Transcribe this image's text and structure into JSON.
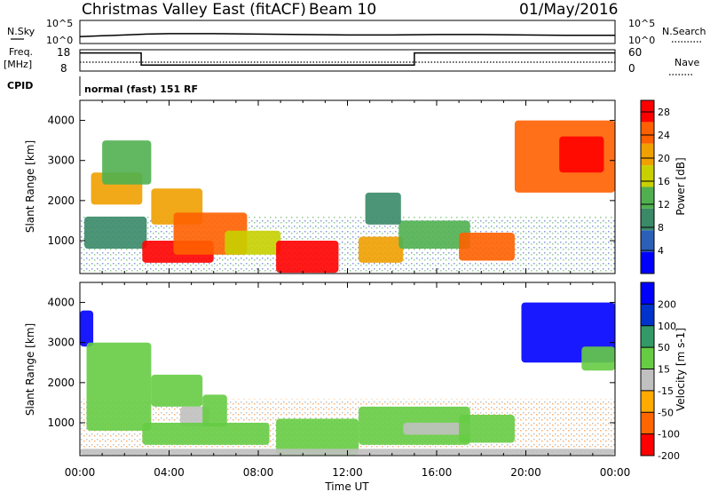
{
  "header": {
    "title": "Christmas Valley East (fitACF)",
    "beam": "Beam 10",
    "date": "01/May/2016"
  },
  "panels": {
    "nsky": {
      "label": "N.Sky",
      "ticks": [
        "10^5",
        "10^0"
      ],
      "right_label": "N.Search",
      "right_ticks": [
        "10^5",
        "10^0"
      ]
    },
    "freq": {
      "label_line1": "Freq.",
      "label_line2": "[MHz]",
      "ticks": [
        "18",
        "8"
      ],
      "right_label": "Nave",
      "right_ticks": [
        "60",
        "0"
      ]
    },
    "cpid": {
      "label": "CPID",
      "value": "normal (fast) 151 RF"
    }
  },
  "chart_data": [
    {
      "type": "line",
      "name": "nsky",
      "x_unit": "hours UT",
      "x": [
        0,
        1,
        2,
        3,
        4,
        6,
        8,
        10,
        12,
        14,
        16,
        18,
        20,
        22,
        24
      ],
      "values": [
        1.4,
        1.6,
        1.8,
        2.0,
        2.1,
        2.1,
        2.0,
        1.9,
        1.8,
        1.8,
        1.9,
        1.9,
        1.8,
        1.7,
        1.7
      ],
      "xlim": [
        0,
        24
      ]
    },
    {
      "type": "line",
      "name": "freq",
      "x_unit": "hours UT",
      "steps": [
        {
          "x0": 0,
          "x1": 2.75,
          "value": 16.5
        },
        {
          "x0": 2.75,
          "x1": 15.0,
          "value": 10.8
        },
        {
          "x0": 15.0,
          "x1": 24,
          "value": 16.5
        }
      ],
      "nave": 25,
      "ylim": [
        8,
        18
      ]
    },
    {
      "type": "heatmap",
      "name": "power",
      "ylabel": "Slant Range [km]",
      "ylim": [
        180,
        4500
      ],
      "xlim": [
        0,
        24
      ],
      "yticks": [
        "4000",
        "3000",
        "2000",
        "1000"
      ],
      "colorbar": {
        "label": "Power [dB]",
        "ticks": [
          "28",
          "24",
          "20",
          "16",
          "12",
          "8",
          "4"
        ],
        "range": [
          0,
          30
        ]
      },
      "regions": [
        {
          "t0": 0.2,
          "t1": 3.0,
          "r0": 800,
          "r1": 1600,
          "v": 10
        },
        {
          "t0": 0.5,
          "t1": 2.8,
          "r0": 1900,
          "r1": 2700,
          "v": 20
        },
        {
          "t0": 1.0,
          "t1": 3.2,
          "r0": 2400,
          "r1": 3500,
          "v": 13
        },
        {
          "t0": 3.2,
          "t1": 5.5,
          "r0": 1400,
          "r1": 2300,
          "v": 20
        },
        {
          "t0": 2.8,
          "t1": 6.0,
          "r0": 450,
          "r1": 1000,
          "v": 29
        },
        {
          "t0": 4.2,
          "t1": 7.5,
          "r0": 650,
          "r1": 1700,
          "v": 26
        },
        {
          "t0": 6.5,
          "t1": 9.0,
          "r0": 650,
          "r1": 1250,
          "v": 18
        },
        {
          "t0": 8.8,
          "t1": 11.6,
          "r0": 200,
          "r1": 1000,
          "v": 27
        },
        {
          "t0": 12.5,
          "t1": 14.5,
          "r0": 450,
          "r1": 1100,
          "v": 21
        },
        {
          "t0": 14.3,
          "t1": 17.5,
          "r0": 800,
          "r1": 1500,
          "v": 12
        },
        {
          "t0": 17.0,
          "t1": 19.5,
          "r0": 500,
          "r1": 1200,
          "v": 26
        },
        {
          "t0": 12.8,
          "t1": 14.4,
          "r0": 1400,
          "r1": 2200,
          "v": 9
        },
        {
          "t0": 19.5,
          "t1": 24,
          "r0": 2200,
          "r1": 4000,
          "v": 23
        },
        {
          "t0": 21.5,
          "t1": 23.5,
          "r0": 2700,
          "r1": 3600,
          "v": 28
        }
      ]
    },
    {
      "type": "heatmap",
      "name": "velocity",
      "ylabel": "Slant Range [km]",
      "xlabel": "Time UT",
      "ylim": [
        180,
        4500
      ],
      "xlim": [
        0,
        24
      ],
      "xticks": [
        "00:00",
        "04:00",
        "08:00",
        "12:00",
        "16:00",
        "20:00",
        "00:00"
      ],
      "yticks": [
        "4000",
        "3000",
        "2000",
        "1000"
      ],
      "colorbar": {
        "label": "Velocity [m s-1]",
        "ticks": [
          "200",
          "100",
          "50",
          "15",
          "-15",
          "-50",
          "-100",
          "-200"
        ],
        "range": [
          -250,
          250
        ]
      },
      "regions": [
        {
          "t0": 0.0,
          "t1": 0.6,
          "r0": 2900,
          "r1": 3800,
          "v": 220
        },
        {
          "t0": 0.3,
          "t1": 3.2,
          "r0": 800,
          "r1": 3000,
          "v": 0
        },
        {
          "t0": 3.2,
          "t1": 5.5,
          "r0": 1400,
          "r1": 2200,
          "v": 0
        },
        {
          "t0": 4.5,
          "t1": 5.8,
          "r0": 900,
          "r1": 1400,
          "v": -40
        },
        {
          "t0": 5.5,
          "t1": 6.6,
          "r0": 900,
          "r1": 1700,
          "v": 40
        },
        {
          "t0": 2.8,
          "t1": 8.5,
          "r0": 450,
          "r1": 1000,
          "v": 0
        },
        {
          "t0": 8.8,
          "t1": 12.5,
          "r0": 200,
          "r1": 1100,
          "v": 0
        },
        {
          "t0": 12.5,
          "t1": 17.5,
          "r0": 450,
          "r1": 1400,
          "v": 0
        },
        {
          "t0": 14.5,
          "t1": 17.5,
          "r0": 700,
          "r1": 1000,
          "v": -30
        },
        {
          "t0": 17.0,
          "t1": 19.5,
          "r0": 500,
          "r1": 1200,
          "v": 0
        },
        {
          "t0": 0.0,
          "t1": 24,
          "r0": 200,
          "r1": 350,
          "v": -30
        },
        {
          "t0": 19.8,
          "t1": 24,
          "r0": 2500,
          "r1": 4000,
          "v": 220
        },
        {
          "t0": 22.5,
          "t1": 24,
          "r0": 2300,
          "r1": 2900,
          "v": 0
        }
      ]
    }
  ],
  "colors": {
    "power_scale": [
      "#0000ff",
      "#2b5fb8",
      "#3a8a68",
      "#50b050",
      "#c8d000",
      "#f0a000",
      "#ff6000",
      "#ff0000"
    ],
    "velocity_scale": [
      "#ff0000",
      "#ff6600",
      "#ffaa00",
      "#c0c0c0",
      "#66cc44",
      "#339966",
      "#0033cc",
      "#0000ff"
    ]
  }
}
